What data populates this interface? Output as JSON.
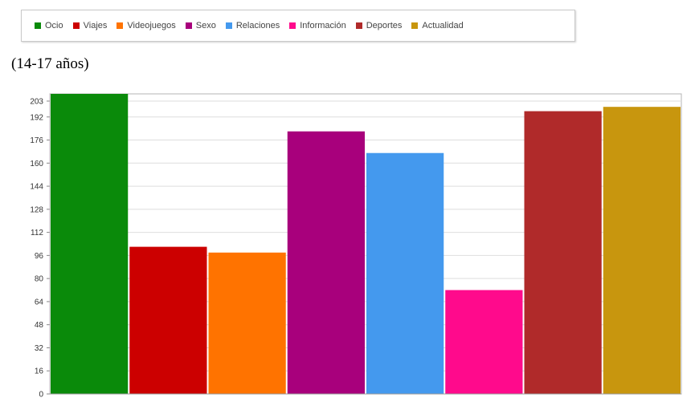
{
  "subtitle": "(14-17 años)",
  "legend": [
    {
      "label": "Ocio",
      "color": "#0a8a0a"
    },
    {
      "label": "Viajes",
      "color": "#cc0000"
    },
    {
      "label": "Videojuegos",
      "color": "#ff7300"
    },
    {
      "label": "Sexo",
      "color": "#a8007c"
    },
    {
      "label": "Relaciones",
      "color": "#4499ee"
    },
    {
      "label": "Información",
      "color": "#ff0a8c"
    },
    {
      "label": "Deportes",
      "color": "#b02a2a"
    },
    {
      "label": "Actualidad",
      "color": "#c8960e"
    }
  ],
  "chart_data": {
    "type": "bar",
    "categories": [
      "Ocio",
      "Viajes",
      "Videojuegos",
      "Sexo",
      "Relaciones",
      "Información",
      "Deportes",
      "Actualidad"
    ],
    "values": [
      208,
      102,
      98,
      182,
      167,
      72,
      196,
      199
    ],
    "colors": [
      "#0a8a0a",
      "#cc0000",
      "#ff7300",
      "#a8007c",
      "#4499ee",
      "#ff0a8c",
      "#b02a2a",
      "#c8960e"
    ],
    "yticks": [
      "0",
      "16",
      "32",
      "48",
      "64",
      "80",
      "96",
      "112",
      "128",
      "144",
      "160",
      "176",
      "192",
      "203"
    ],
    "ylim": [
      0,
      208
    ],
    "grid": true,
    "legend_position": "top"
  }
}
